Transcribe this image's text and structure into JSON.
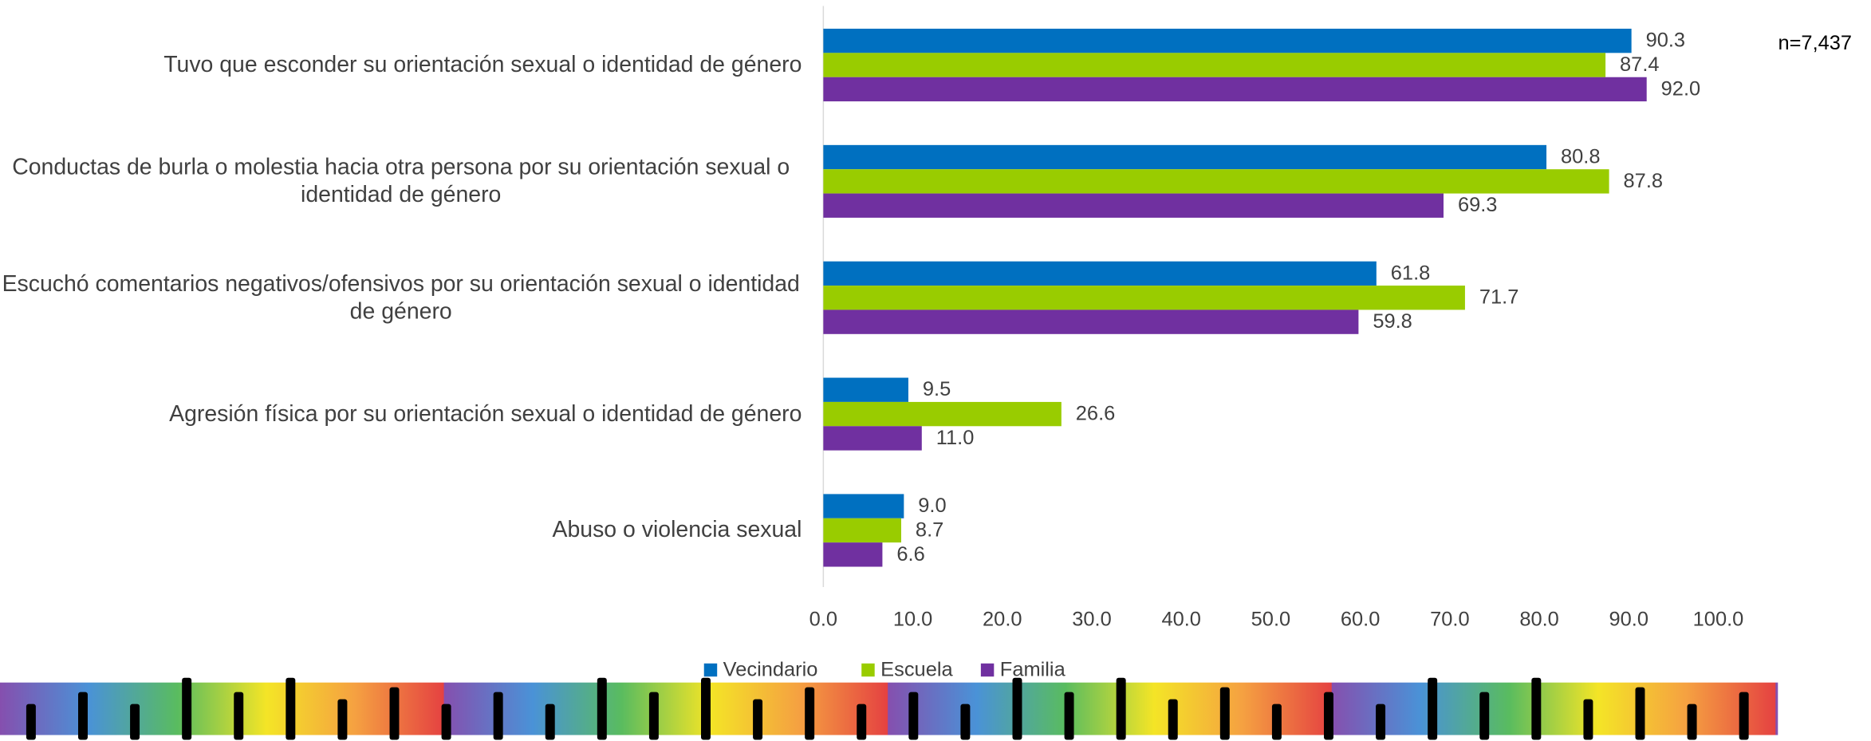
{
  "chart_data": {
    "type": "hbar",
    "categories": [
      "Tuvo que esconder su orientación sexual o identidad de género",
      "Conductas de burla o molestia hacia otra persona por su orientación sexual o identidad de género",
      "Escuchó comentarios negativos/ofensivos por su orientación sexual o identidad de género",
      "Agresión física por su orientación sexual o identidad de género",
      "Abuso o  violencia sexual"
    ],
    "series": [
      {
        "name": "Vecindario",
        "color": "#0070c0",
        "values": [
          90.3,
          80.8,
          61.8,
          9.5,
          9.0
        ],
        "value_labels": [
          "90.3",
          "80.8",
          "61.8",
          "9.5",
          "9.0"
        ]
      },
      {
        "name": "Escuela",
        "color": "#99cc00",
        "values": [
          87.4,
          87.8,
          71.7,
          26.6,
          8.7
        ],
        "value_labels": [
          "87.4",
          "87.8",
          "71.7",
          "26.6",
          "8.7"
        ]
      },
      {
        "name": "Familia",
        "color": "#7030a0",
        "values": [
          92.0,
          69.3,
          59.8,
          11.0,
          6.6
        ],
        "value_labels": [
          "92.0",
          "69.3",
          "59.8",
          "11.0",
          "6.6"
        ]
      }
    ],
    "xlim": [
      0,
      100
    ],
    "xticks": [
      {
        "value": 0,
        "label": "0.0"
      },
      {
        "value": 10,
        "label": "10.0"
      },
      {
        "value": 20,
        "label": "20.0"
      },
      {
        "value": 30,
        "label": "30.0"
      },
      {
        "value": 40,
        "label": "40.0"
      },
      {
        "value": 50,
        "label": "50.0"
      },
      {
        "value": 60,
        "label": "60.0"
      },
      {
        "value": 70,
        "label": "70.0"
      },
      {
        "value": 80,
        "label": "80.0"
      },
      {
        "value": 90,
        "label": "90.0"
      },
      {
        "value": 100,
        "label": "100.0"
      }
    ],
    "annotation": "n=7,437",
    "legend": "bottom"
  }
}
